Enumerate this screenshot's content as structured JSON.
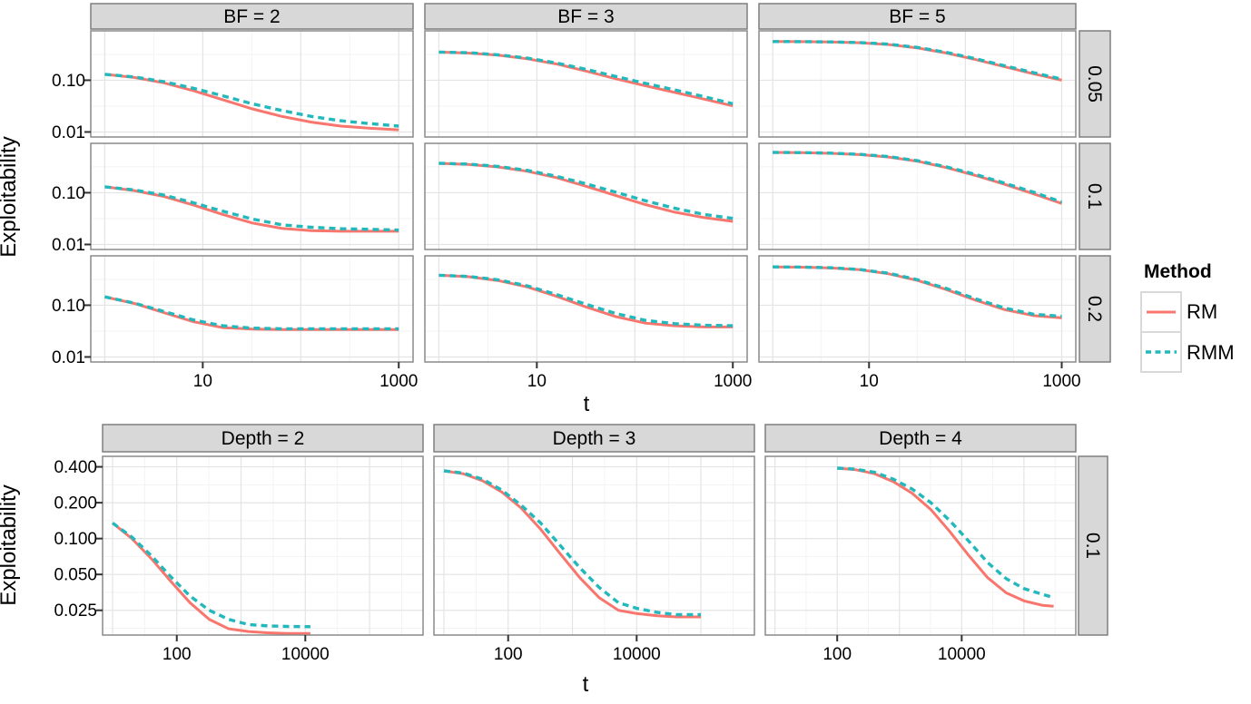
{
  "legend": {
    "title": "Method",
    "entries": [
      {
        "label": "RM",
        "color": "#F8766D",
        "style": "solid"
      },
      {
        "label": "RMM",
        "color": "#23B8BC",
        "style": "dashed"
      }
    ]
  },
  "chart_data": [
    {
      "type": "line",
      "facet_grid": {
        "cols": [
          "BF = 2",
          "BF = 3",
          "BF = 5"
        ],
        "rows": [
          "0.05",
          "0.1",
          "0.2"
        ]
      },
      "xlabel": "t",
      "ylabel": "Exploitability",
      "x_scale": "log10",
      "y_scale": "log10",
      "x_ticks": [
        10,
        1000
      ],
      "x_tick_labels": [
        "10",
        "1000"
      ],
      "y_ticks": [
        0.1,
        0.01
      ],
      "y_tick_labels": [
        "0.10",
        "0.01"
      ],
      "xlim": [
        0.72,
        1400
      ],
      "ylim": [
        0.008,
        0.9
      ],
      "grid": true,
      "legend_position": "right",
      "x": [
        1,
        2,
        4,
        8,
        16,
        32,
        64,
        128,
        256,
        512,
        1000
      ],
      "panels": [
        {
          "row": "0.05",
          "col": "BF = 2",
          "series": [
            {
              "name": "RM",
              "values": [
                0.13,
                0.113,
                0.089,
                0.063,
                0.042,
                0.028,
                0.02,
                0.0155,
                0.013,
                0.0118,
                0.011
              ]
            },
            {
              "name": "RMM",
              "values": [
                0.13,
                0.116,
                0.094,
                0.07,
                0.05,
                0.035,
                0.026,
                0.02,
                0.0165,
                0.0145,
                0.013
              ]
            }
          ]
        },
        {
          "row": "0.05",
          "col": "BF = 3",
          "series": [
            {
              "name": "RM",
              "values": [
                0.35,
                0.335,
                0.305,
                0.26,
                0.205,
                0.15,
                0.107,
                0.078,
                0.058,
                0.043,
                0.032
              ]
            },
            {
              "name": "RMM",
              "values": [
                0.35,
                0.34,
                0.31,
                0.268,
                0.215,
                0.162,
                0.118,
                0.087,
                0.065,
                0.048,
                0.035
              ]
            }
          ]
        },
        {
          "row": "0.05",
          "col": "BF = 5",
          "series": [
            {
              "name": "RM",
              "values": [
                0.56,
                0.556,
                0.548,
                0.53,
                0.49,
                0.42,
                0.335,
                0.25,
                0.182,
                0.133,
                0.1
              ]
            },
            {
              "name": "RMM",
              "values": [
                0.56,
                0.557,
                0.55,
                0.535,
                0.497,
                0.43,
                0.345,
                0.26,
                0.19,
                0.14,
                0.105
              ]
            }
          ]
        },
        {
          "row": "0.1",
          "col": "BF = 2",
          "series": [
            {
              "name": "RM",
              "values": [
                0.13,
                0.11,
                0.085,
                0.058,
                0.038,
                0.026,
                0.0205,
                0.0185,
                0.018,
                0.018,
                0.018
              ]
            },
            {
              "name": "RMM",
              "values": [
                0.13,
                0.113,
                0.09,
                0.064,
                0.044,
                0.031,
                0.024,
                0.0215,
                0.0202,
                0.0196,
                0.019
              ]
            }
          ]
        },
        {
          "row": "0.1",
          "col": "BF = 3",
          "series": [
            {
              "name": "RM",
              "values": [
                0.37,
                0.352,
                0.315,
                0.26,
                0.195,
                0.133,
                0.088,
                0.059,
                0.042,
                0.033,
                0.028
              ]
            },
            {
              "name": "RMM",
              "values": [
                0.37,
                0.357,
                0.323,
                0.27,
                0.207,
                0.148,
                0.102,
                0.07,
                0.05,
                0.038,
                0.032
              ]
            }
          ]
        },
        {
          "row": "0.1",
          "col": "BF = 5",
          "series": [
            {
              "name": "RM",
              "values": [
                0.6,
                0.594,
                0.578,
                0.545,
                0.49,
                0.405,
                0.305,
                0.215,
                0.145,
                0.095,
                0.062
              ]
            },
            {
              "name": "RMM",
              "values": [
                0.6,
                0.596,
                0.582,
                0.552,
                0.5,
                0.415,
                0.315,
                0.225,
                0.153,
                0.102,
                0.066
              ]
            }
          ]
        },
        {
          "row": "0.2",
          "col": "BF = 2",
          "series": [
            {
              "name": "RM",
              "values": [
                0.145,
                0.108,
                0.072,
                0.048,
                0.037,
                0.0345,
                0.034,
                0.034,
                0.034,
                0.034,
                0.034
              ]
            },
            {
              "name": "RMM",
              "values": [
                0.145,
                0.11,
                0.076,
                0.052,
                0.04,
                0.036,
                0.035,
                0.035,
                0.035,
                0.035,
                0.035
              ]
            }
          ]
        },
        {
          "row": "0.2",
          "col": "BF = 3",
          "series": [
            {
              "name": "RM",
              "values": [
                0.38,
                0.355,
                0.3,
                0.225,
                0.148,
                0.092,
                0.06,
                0.045,
                0.04,
                0.038,
                0.038
              ]
            },
            {
              "name": "RMM",
              "values": [
                0.38,
                0.36,
                0.31,
                0.237,
                0.16,
                0.104,
                0.069,
                0.051,
                0.044,
                0.041,
                0.04
              ]
            }
          ]
        },
        {
          "row": "0.2",
          "col": "BF = 5",
          "series": [
            {
              "name": "RM",
              "values": [
                0.55,
                0.543,
                0.525,
                0.485,
                0.405,
                0.3,
                0.2,
                0.125,
                0.082,
                0.063,
                0.057
              ]
            },
            {
              "name": "RMM",
              "values": [
                0.55,
                0.545,
                0.53,
                0.49,
                0.415,
                0.31,
                0.21,
                0.133,
                0.088,
                0.067,
                0.061
              ]
            }
          ]
        }
      ]
    },
    {
      "type": "line",
      "facet_grid": {
        "cols": [
          "Depth = 2",
          "Depth = 3",
          "Depth = 4"
        ],
        "rows": [
          "0.1"
        ]
      },
      "xlabel": "t",
      "ylabel": "Exploitability",
      "x_scale": "log10",
      "y_scale": "log10",
      "x_ticks": [
        100,
        10000
      ],
      "x_tick_labels": [
        "100",
        "10000"
      ],
      "y_ticks": [
        0.4,
        0.2,
        0.1,
        0.05,
        0.025
      ],
      "y_tick_labels": [
        "0.400",
        "0.200",
        "0.100",
        "0.050",
        "0.025"
      ],
      "xlim": [
        7,
        680000
      ],
      "ylim": [
        0.0155,
        0.49
      ],
      "grid": true,
      "legend_position": "none",
      "panels": [
        {
          "row": "0.1",
          "col": "Depth = 2",
          "x": [
            10,
            20,
            40,
            80,
            160,
            320,
            640,
            1300,
            2600,
            5200,
            12000
          ],
          "series": [
            {
              "name": "RM",
              "values": [
                0.135,
                0.1,
                0.068,
                0.044,
                0.029,
                0.021,
                0.0175,
                0.0166,
                0.0162,
                0.016,
                0.016
              ]
            },
            {
              "name": "RMM",
              "values": [
                0.135,
                0.103,
                0.072,
                0.048,
                0.033,
                0.025,
                0.021,
                0.019,
                0.0185,
                0.0183,
                0.0182
              ]
            }
          ]
        },
        {
          "row": "0.1",
          "col": "Depth = 3",
          "x": [
            10,
            20,
            40,
            80,
            160,
            320,
            640,
            1300,
            2600,
            5200,
            10000,
            21000,
            42000,
            100000
          ],
          "series": [
            {
              "name": "RM",
              "values": [
                0.37,
                0.35,
                0.305,
                0.245,
                0.18,
                0.12,
                0.075,
                0.047,
                0.032,
                0.025,
                0.0235,
                0.0225,
                0.022,
                0.022
              ]
            },
            {
              "name": "RMM",
              "values": [
                0.37,
                0.355,
                0.315,
                0.255,
                0.19,
                0.135,
                0.088,
                0.057,
                0.039,
                0.029,
                0.026,
                0.024,
                0.023,
                0.023
              ]
            }
          ]
        },
        {
          "row": "0.1",
          "col": "Depth = 4",
          "x": [
            100,
            200,
            400,
            800,
            1600,
            3200,
            6400,
            13000,
            26000,
            52000,
            100000,
            200000,
            300000
          ],
          "series": [
            {
              "name": "RM",
              "values": [
                0.39,
                0.378,
                0.35,
                0.3,
                0.24,
                0.175,
                0.115,
                0.072,
                0.047,
                0.035,
                0.03,
                0.0275,
                0.027
              ]
            },
            {
              "name": "RMM",
              "values": [
                0.39,
                0.382,
                0.36,
                0.315,
                0.26,
                0.2,
                0.142,
                0.095,
                0.063,
                0.046,
                0.038,
                0.034,
                0.032
              ]
            }
          ]
        }
      ]
    }
  ]
}
